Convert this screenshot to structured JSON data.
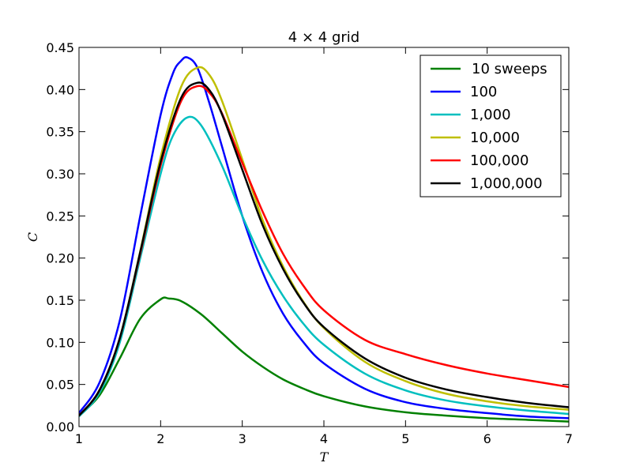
{
  "chart_data": {
    "type": "line",
    "title": "4  × 4 grid",
    "xlabel": "T",
    "ylabel": "C",
    "xlim": [
      1,
      7
    ],
    "ylim": [
      0,
      0.45
    ],
    "xticks": [
      1,
      2,
      3,
      4,
      5,
      6,
      7
    ],
    "xtick_labels": [
      "1",
      "2",
      "3",
      "4",
      "5",
      "6",
      "7"
    ],
    "yticks": [
      0.0,
      0.05,
      0.1,
      0.15,
      0.2,
      0.25,
      0.3,
      0.35,
      0.4,
      0.45
    ],
    "ytick_labels": [
      "0.00",
      "0.05",
      "0.10",
      "0.15",
      "0.20",
      "0.25",
      "0.30",
      "0.35",
      "0.40",
      "0.45"
    ],
    "grid": false,
    "legend_position": "top-right",
    "series": [
      {
        "name": "10 sweeps",
        "color": "#008000",
        "x": [
          1.0,
          1.25,
          1.5,
          1.75,
          2.0,
          2.1,
          2.25,
          2.5,
          2.75,
          3.0,
          3.25,
          3.5,
          3.75,
          4.0,
          4.5,
          5.0,
          5.5,
          6.0,
          6.5,
          7.0
        ],
        "y": [
          0.013,
          0.037,
          0.081,
          0.128,
          0.151,
          0.152,
          0.149,
          0.133,
          0.111,
          0.089,
          0.071,
          0.056,
          0.045,
          0.036,
          0.024,
          0.017,
          0.013,
          0.01,
          0.008,
          0.006
        ]
      },
      {
        "name": "100",
        "color": "#0000ff",
        "x": [
          1.0,
          1.25,
          1.5,
          1.75,
          2.0,
          2.15,
          2.25,
          2.33,
          2.45,
          2.6,
          2.75,
          3.0,
          3.25,
          3.5,
          3.75,
          4.0,
          4.5,
          5.0,
          5.5,
          6.0,
          6.5,
          7.0
        ],
        "y": [
          0.016,
          0.052,
          0.126,
          0.25,
          0.37,
          0.419,
          0.434,
          0.438,
          0.426,
          0.383,
          0.333,
          0.25,
          0.183,
          0.134,
          0.1,
          0.075,
          0.045,
          0.029,
          0.021,
          0.016,
          0.012,
          0.01
        ]
      },
      {
        "name": "1,000",
        "color": "#00bfbf",
        "x": [
          1.0,
          1.25,
          1.5,
          1.75,
          2.0,
          2.15,
          2.33,
          2.5,
          2.75,
          3.0,
          3.25,
          3.5,
          3.75,
          4.0,
          4.5,
          5.0,
          5.5,
          6.0,
          6.5,
          7.0
        ],
        "y": [
          0.012,
          0.04,
          0.1,
          0.2,
          0.3,
          0.345,
          0.367,
          0.357,
          0.31,
          0.25,
          0.197,
          0.155,
          0.122,
          0.097,
          0.063,
          0.043,
          0.031,
          0.024,
          0.019,
          0.015
        ]
      },
      {
        "name": "10,000",
        "color": "#bfbf00",
        "x": [
          1.0,
          1.25,
          1.5,
          1.75,
          2.0,
          2.25,
          2.45,
          2.6,
          2.75,
          3.0,
          3.25,
          3.5,
          3.75,
          4.0,
          4.5,
          5.0,
          5.5,
          6.0,
          6.5,
          7.0
        ],
        "y": [
          0.013,
          0.043,
          0.105,
          0.208,
          0.32,
          0.403,
          0.426,
          0.417,
          0.387,
          0.317,
          0.245,
          0.19,
          0.148,
          0.117,
          0.077,
          0.054,
          0.039,
          0.03,
          0.024,
          0.02
        ]
      },
      {
        "name": "100,000",
        "color": "#ff0000",
        "x": [
          1.0,
          1.25,
          1.5,
          1.75,
          2.0,
          2.25,
          2.45,
          2.6,
          2.75,
          3.0,
          3.25,
          3.5,
          3.75,
          4.0,
          4.5,
          5.0,
          5.5,
          6.0,
          6.5,
          7.0
        ],
        "y": [
          0.013,
          0.043,
          0.105,
          0.205,
          0.31,
          0.386,
          0.404,
          0.396,
          0.372,
          0.313,
          0.255,
          0.205,
          0.167,
          0.138,
          0.103,
          0.086,
          0.073,
          0.063,
          0.055,
          0.047
        ]
      },
      {
        "name": "1,000,000",
        "color": "#000000",
        "x": [
          1.0,
          1.25,
          1.5,
          1.75,
          2.0,
          2.25,
          2.45,
          2.6,
          2.75,
          3.0,
          3.25,
          3.5,
          3.75,
          4.0,
          4.5,
          5.0,
          5.5,
          6.0,
          6.5,
          7.0
        ],
        "y": [
          0.013,
          0.043,
          0.105,
          0.207,
          0.314,
          0.39,
          0.408,
          0.399,
          0.371,
          0.305,
          0.239,
          0.187,
          0.147,
          0.118,
          0.081,
          0.058,
          0.044,
          0.035,
          0.028,
          0.023
        ]
      }
    ]
  }
}
